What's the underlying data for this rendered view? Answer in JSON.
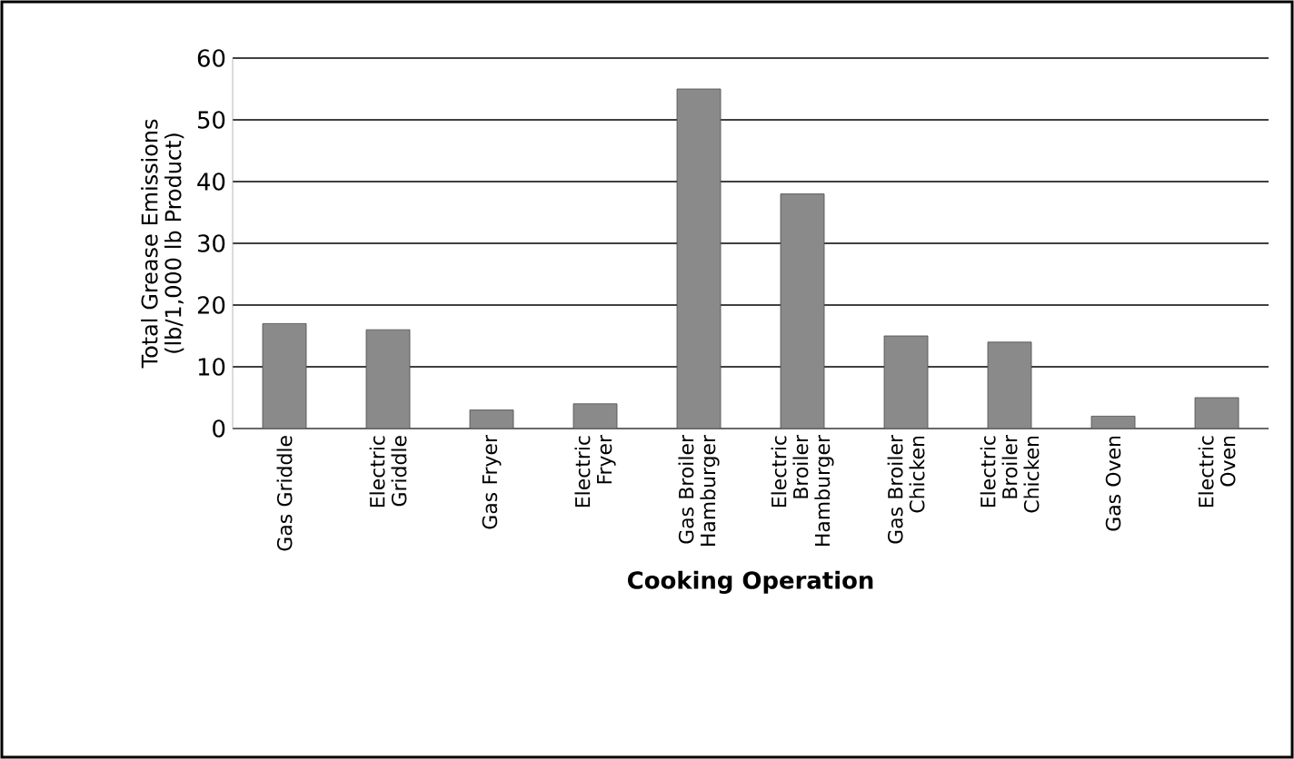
{
  "chart_data": {
    "type": "bar",
    "xlabel": "Cooking Operation",
    "ylabel": "Total Grease Emissions (lb/1,000 lb Product)",
    "categories": [
      "Gas Griddle",
      "Electric Griddle",
      "Gas Fryer",
      "Electric Fryer",
      "Gas Broiler Hamburger",
      "Electric Broiler Hamburger",
      "Gas Broiler Chicken",
      "Electric Broiler Chicken",
      "Gas Oven",
      "Electric Oven"
    ],
    "values": [
      17,
      16,
      3,
      4,
      55,
      38,
      15,
      14,
      2,
      5
    ],
    "color": "#8a8a8a",
    "ylim": [
      0,
      60
    ],
    "yticks": [
      0,
      10,
      20,
      30,
      40,
      50,
      60
    ],
    "grid": "y"
  }
}
